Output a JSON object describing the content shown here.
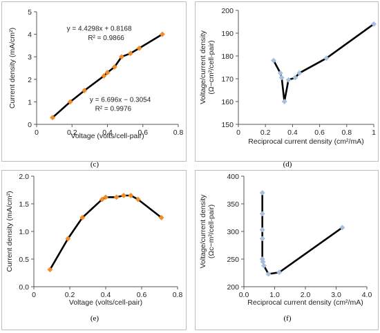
{
  "chart_data": [
    {
      "panel_label": "(c)",
      "type": "scatter",
      "xlabel": "Voltage (volts/cell-pair)",
      "ylabel": "Current density (mA/cm²)",
      "xlim": [
        0,
        0.8
      ],
      "ylim": [
        0,
        5
      ],
      "xticks": [
        "0",
        "0.2",
        "0.4",
        "0.6",
        "0.8"
      ],
      "yticks": [
        "0",
        "1",
        "2",
        "3",
        "4",
        "5"
      ],
      "marker_color": "#f28c28",
      "line_color": "#000000",
      "series": [
        {
          "points": [
            [
              0.09,
              0.3
            ],
            [
              0.19,
              1.0
            ],
            [
              0.27,
              1.5
            ],
            [
              0.38,
              2.15
            ],
            [
              0.4,
              2.3
            ],
            [
              0.44,
              2.55
            ],
            [
              0.48,
              3.0
            ],
            [
              0.53,
              3.15
            ],
            [
              0.58,
              3.38
            ],
            [
              0.71,
              4.0
            ]
          ]
        }
      ],
      "annotations": [
        {
          "text": "y = 4.4298x + 0.8168",
          "x": 0.17,
          "y": 4.15
        },
        {
          "text": "R² = 0.9866",
          "x": 0.29,
          "y": 3.75
        },
        {
          "text": "y = 6.696x − 0.3054",
          "x": 0.3,
          "y": 1.0
        },
        {
          "text": "R² = 0.9976",
          "x": 0.33,
          "y": 0.6
        }
      ]
    },
    {
      "panel_label": "(d)",
      "type": "scatter",
      "xlabel": "Reciprocal current density (cm²/mA)",
      "ylabel_lines": [
        "Voltage/current density",
        "(Ω−cm²/cell-pair)"
      ],
      "xlim": [
        0,
        1
      ],
      "ylim": [
        150,
        200
      ],
      "xticks": [
        "0",
        "0.2",
        "0.4",
        "0.6",
        "0.8",
        "1"
      ],
      "yticks": [
        "150",
        "160",
        "170",
        "180",
        "190",
        "200"
      ],
      "marker_color": "#a7bede",
      "line_color": "#000000",
      "series": [
        {
          "points": [
            [
              0.26,
              178
            ],
            [
              0.31,
              172.5
            ],
            [
              0.32,
              170.5
            ],
            [
              0.34,
              160
            ],
            [
              0.37,
              169.5
            ],
            [
              0.42,
              170.5
            ],
            [
              0.45,
              172.5
            ],
            [
              0.65,
              179
            ],
            [
              1.0,
              194
            ]
          ]
        }
      ]
    },
    {
      "panel_label": "(e)",
      "type": "scatter",
      "xlabel": "Voltage (volts/cell-pair)",
      "ylabel": "Current density (mA/cm²)",
      "xlim": [
        0,
        0.8
      ],
      "ylim": [
        0,
        2
      ],
      "xticks": [
        "0",
        "0.2",
        "0.4",
        "0.6",
        "0.8"
      ],
      "yticks": [
        "0.0",
        "0.5",
        "1.0",
        "1.5",
        "2.0"
      ],
      "marker_color": "#f28c28",
      "line_color": "#000000",
      "series": [
        {
          "points": [
            [
              0.09,
              0.31
            ],
            [
              0.19,
              0.87
            ],
            [
              0.27,
              1.25
            ],
            [
              0.38,
              1.58
            ],
            [
              0.4,
              1.62
            ],
            [
              0.46,
              1.62
            ],
            [
              0.5,
              1.65
            ],
            [
              0.54,
              1.65
            ],
            [
              0.58,
              1.58
            ],
            [
              0.71,
              1.25
            ]
          ]
        }
      ]
    },
    {
      "panel_label": "(f)",
      "type": "scatter",
      "xlabel": "Reciprocal current density (cm²/mA)",
      "ylabel_lines": [
        "Voltage/current density",
        "(Ωc−m²/cell-pair)"
      ],
      "xlim": [
        0,
        4
      ],
      "ylim": [
        200,
        400
      ],
      "xticks": [
        "0.0",
        "1.0",
        "2.0",
        "3.0",
        "4.0"
      ],
      "yticks": [
        "200",
        "250",
        "300",
        "350",
        "400"
      ],
      "marker_color": "#a7bede",
      "line_color": "#000000",
      "series": [
        {
          "points": [
            [
              0.6,
              370
            ],
            [
              0.6,
              332
            ],
            [
              0.6,
              303
            ],
            [
              0.6,
              287
            ],
            [
              0.6,
              250
            ],
            [
              0.62,
              245
            ],
            [
              0.65,
              238
            ],
            [
              0.8,
              223
            ],
            [
              1.15,
              226
            ],
            [
              3.2,
              307
            ]
          ]
        }
      ]
    }
  ]
}
